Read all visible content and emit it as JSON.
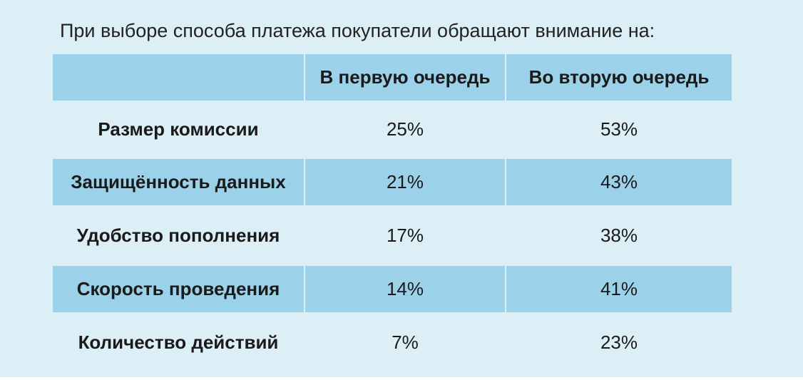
{
  "chart_data": {
    "type": "table",
    "title": "При выборе способа платежа покупатели обращают внимание на:",
    "columns": [
      "",
      "В первую очередь",
      "Во вторую очередь"
    ],
    "rows": [
      {
        "label": "Размер комиссии",
        "values": [
          "25%",
          "53%"
        ]
      },
      {
        "label": "Защищённость данных",
        "values": [
          "21%",
          "43%"
        ]
      },
      {
        "label": "Удобство пополнения",
        "values": [
          "17%",
          "38%"
        ]
      },
      {
        "label": "Скорость проведения",
        "values": [
          "14%",
          "41%"
        ]
      },
      {
        "label": "Количество действий",
        "values": [
          "7%",
          "23%"
        ]
      }
    ]
  },
  "colors": {
    "background": "#dceef6",
    "shaded_row": "#9bd2ea",
    "text": "#1a1a1a"
  }
}
